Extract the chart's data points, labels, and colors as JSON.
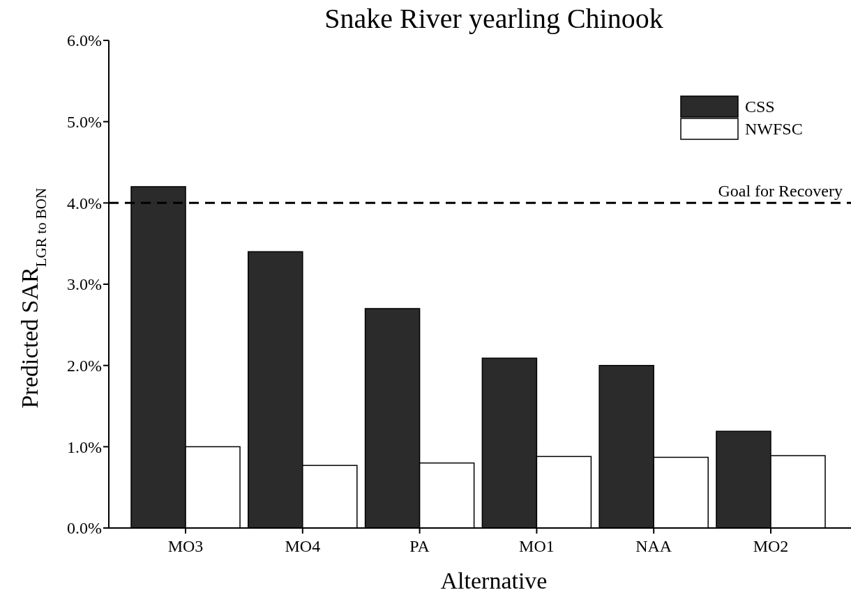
{
  "chart_data": {
    "type": "bar",
    "title": "Snake River yearling Chinook",
    "xlabel": "Alternative",
    "ylabel": "Predicted SAR$_{LGR to BON}$",
    "categories": [
      "MO3",
      "MO4",
      "PA",
      "MO1",
      "NAA",
      "MO2"
    ],
    "series": [
      {
        "name": "CSS",
        "color": "#2b2b2b",
        "values": [
          4.2,
          3.4,
          2.7,
          2.09,
          2.0,
          1.19
        ]
      },
      {
        "name": "NWFSC",
        "color": "#ffffff",
        "values": [
          1.0,
          0.77,
          0.8,
          0.88,
          0.87,
          0.89
        ]
      }
    ],
    "ylim": [
      0,
      6
    ],
    "yticks": [
      {
        "value": 0,
        "label": "0.0%"
      },
      {
        "value": 1,
        "label": "1.0%"
      },
      {
        "value": 2,
        "label": "2.0%"
      },
      {
        "value": 3,
        "label": "3.0%"
      },
      {
        "value": 4,
        "label": "4.0%"
      },
      {
        "value": 5,
        "label": "5.0%"
      },
      {
        "value": 6,
        "label": "6.0%"
      }
    ],
    "ref_lines": [
      {
        "axis": "y",
        "value": 4,
        "label": "Goal for Recovery",
        "line_style": "dashed",
        "color": "#000000"
      }
    ],
    "legend": "top right",
    "grid": false
  }
}
